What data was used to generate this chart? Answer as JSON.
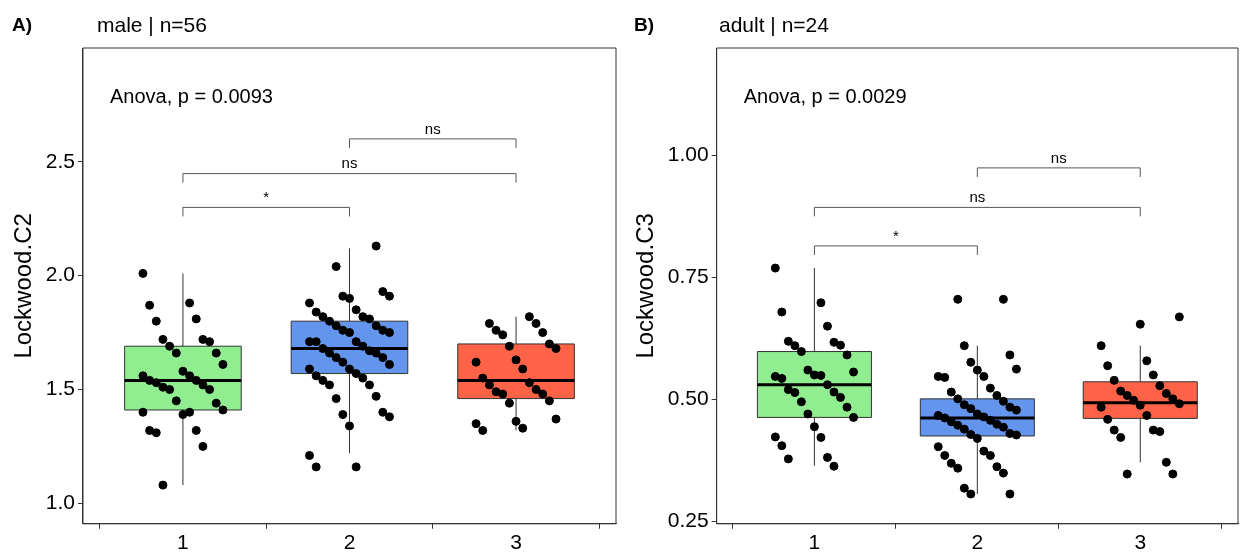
{
  "chart_data": [
    {
      "type": "box",
      "title": "male | n=56",
      "ylabel": "Lockwood.C2",
      "categories": [
        "1",
        "2",
        "3"
      ],
      "colors": [
        "#90ee90",
        "#6495ed",
        "#ff6347"
      ],
      "boxes": [
        {
          "low": 1.08,
          "q1": 1.41,
          "median": 1.54,
          "q3": 1.69,
          "high": 2.01
        },
        {
          "low": 1.22,
          "q1": 1.57,
          "median": 1.68,
          "q3": 1.8,
          "high": 2.12
        },
        {
          "low": 1.32,
          "q1": 1.46,
          "median": 1.54,
          "q3": 1.7,
          "high": 1.82
        }
      ],
      "series": [
        {
          "type": "scatter",
          "color": "#000000",
          "x": [
            "1",
            "1",
            "1",
            "1",
            "1",
            "1",
            "1",
            "1",
            "1",
            "1",
            "1",
            "1",
            "1",
            "1",
            "1",
            "1",
            "1",
            "1",
            "1",
            "1",
            "1",
            "1",
            "1",
            "1",
            "1",
            "1",
            "1",
            "1",
            "1",
            "1",
            "1",
            "1",
            "1",
            "2",
            "2",
            "2",
            "2",
            "2",
            "2",
            "2",
            "2",
            "2",
            "2",
            "2",
            "2",
            "2",
            "2",
            "2",
            "2",
            "2",
            "2",
            "2",
            "2",
            "2",
            "2",
            "2",
            "2",
            "2",
            "2",
            "2",
            "2",
            "2",
            "2",
            "2",
            "2",
            "2",
            "2",
            "2",
            "2",
            "2",
            "2",
            "2",
            "2",
            "2",
            "2",
            "2",
            "2",
            "2",
            "2",
            "2",
            "2",
            "3",
            "3",
            "3",
            "3",
            "3",
            "3",
            "3",
            "3",
            "3",
            "3",
            "3",
            "3",
            "3",
            "3",
            "3",
            "3",
            "3",
            "3",
            "3",
            "3",
            "3",
            "3",
            "3",
            "3",
            "3",
            "3"
          ],
          "values": [
            2.01,
            1.88,
            1.87,
            1.81,
            1.8,
            1.72,
            1.72,
            1.71,
            1.69,
            1.66,
            1.66,
            1.61,
            1.58,
            1.56,
            1.56,
            1.54,
            1.54,
            1.53,
            1.52,
            1.51,
            1.5,
            1.5,
            1.44,
            1.45,
            1.41,
            1.39,
            1.4,
            1.4,
            1.32,
            1.32,
            1.31,
            1.25,
            1.08,
            2.13,
            2.04,
            1.93,
            1.91,
            1.91,
            1.9,
            1.88,
            1.85,
            1.84,
            1.82,
            1.82,
            1.81,
            1.8,
            1.78,
            1.78,
            1.76,
            1.76,
            1.75,
            1.75,
            1.71,
            1.71,
            1.71,
            1.69,
            1.68,
            1.67,
            1.66,
            1.66,
            1.64,
            1.64,
            1.62,
            1.61,
            1.59,
            1.59,
            1.57,
            1.56,
            1.55,
            1.54,
            1.52,
            1.52,
            1.47,
            1.46,
            1.4,
            1.39,
            1.38,
            1.34,
            1.21,
            1.16,
            1.16,
            1.82,
            1.79,
            1.79,
            1.76,
            1.75,
            1.74,
            1.7,
            1.69,
            1.68,
            1.63,
            1.62,
            1.59,
            1.55,
            1.53,
            1.52,
            1.5,
            1.49,
            1.48,
            1.48,
            1.45,
            1.44,
            1.37,
            1.36,
            1.35,
            1.33,
            1.32
          ]
        }
      ],
      "ylim": [
        0.91,
        3.0
      ],
      "yticks": [
        {
          "value": 1,
          "label": "1.0"
        },
        {
          "value": 1.5,
          "label": "1.5"
        },
        {
          "value": 2,
          "label": "2.0"
        },
        {
          "value": 2.5,
          "label": "2.5"
        }
      ],
      "marker": "circle",
      "annotations": [
        "A)",
        "Anova, p = 0.0093",
        "*",
        "ns",
        "ns"
      ]
    },
    {
      "type": "box",
      "title": "adult | n=24",
      "ylabel": "Lockwood.C3",
      "categories": [
        "1",
        "2",
        "3"
      ],
      "colors": [
        "#90ee90",
        "#6495ed",
        "#ff6347"
      ],
      "boxes": [
        {
          "low": 0.364,
          "q1": 0.463,
          "median": 0.53,
          "q3": 0.598,
          "high": 0.769
        },
        {
          "low": 0.306,
          "q1": 0.425,
          "median": 0.462,
          "q3": 0.501,
          "high": 0.61
        },
        {
          "low": 0.371,
          "q1": 0.461,
          "median": 0.493,
          "q3": 0.536,
          "high": 0.61
        }
      ],
      "series": [
        {
          "type": "scatter",
          "color": "#000000",
          "x": [
            "1",
            "1",
            "1",
            "1",
            "1",
            "1",
            "1",
            "1",
            "1",
            "1",
            "1",
            "1",
            "1",
            "1",
            "1",
            "1",
            "1",
            "1",
            "1",
            "1",
            "1",
            "1",
            "1",
            "1",
            "1",
            "1",
            "1",
            "1",
            "1",
            "1",
            "1",
            "1",
            "2",
            "2",
            "2",
            "2",
            "2",
            "2",
            "2",
            "2",
            "2",
            "2",
            "2",
            "2",
            "2",
            "2",
            "2",
            "2",
            "2",
            "2",
            "2",
            "2",
            "2",
            "2",
            "2",
            "2",
            "2",
            "2",
            "2",
            "2",
            "2",
            "2",
            "2",
            "2",
            "2",
            "2",
            "2",
            "2",
            "2",
            "2",
            "2",
            "2",
            "2",
            "2",
            "2",
            "2",
            "3",
            "3",
            "3",
            "3",
            "3",
            "3",
            "3",
            "3",
            "3",
            "3",
            "3",
            "3",
            "3",
            "3",
            "3",
            "3",
            "3",
            "3",
            "3",
            "3",
            "3",
            "3",
            "3",
            "3",
            "3"
          ],
          "values": [
            0.769,
            0.698,
            0.679,
            0.65,
            0.619,
            0.617,
            0.61,
            0.611,
            0.598,
            0.591,
            0.56,
            0.556,
            0.55,
            0.547,
            0.549,
            0.543,
            0.53,
            0.52,
            0.515,
            0.514,
            0.504,
            0.495,
            0.484,
            0.47,
            0.463,
            0.444,
            0.423,
            0.422,
            0.405,
            0.381,
            0.378,
            0.363,
            0.705,
            0.705,
            0.61,
            0.591,
            0.576,
            0.562,
            0.56,
            0.547,
            0.547,
            0.545,
            0.523,
            0.515,
            0.508,
            0.501,
            0.496,
            0.489,
            0.484,
            0.481,
            0.478,
            0.47,
            0.467,
            0.464,
            0.462,
            0.457,
            0.454,
            0.449,
            0.447,
            0.443,
            0.439,
            0.43,
            0.428,
            0.427,
            0.42,
            0.403,
            0.394,
            0.385,
            0.385,
            0.369,
            0.362,
            0.359,
            0.349,
            0.318,
            0.306,
            0.306,
            0.669,
            0.654,
            0.61,
            0.579,
            0.569,
            0.55,
            0.539,
            0.528,
            0.517,
            0.512,
            0.508,
            0.501,
            0.498,
            0.491,
            0.488,
            0.484,
            0.467,
            0.459,
            0.437,
            0.437,
            0.434,
            0.422,
            0.371,
            0.347,
            0.347
          ]
        }
      ],
      "ylim": [
        0.245,
        1.22
      ],
      "yticks": [
        {
          "value": 0.25,
          "label": "0.25"
        },
        {
          "value": 0.5,
          "label": "0.50"
        },
        {
          "value": 0.75,
          "label": "0.75"
        },
        {
          "value": 1,
          "label": "1.00"
        }
      ],
      "marker": "circle",
      "annotations": [
        "B)",
        "Anova, p = 0.0029",
        "*",
        "ns",
        "ns"
      ]
    }
  ]
}
